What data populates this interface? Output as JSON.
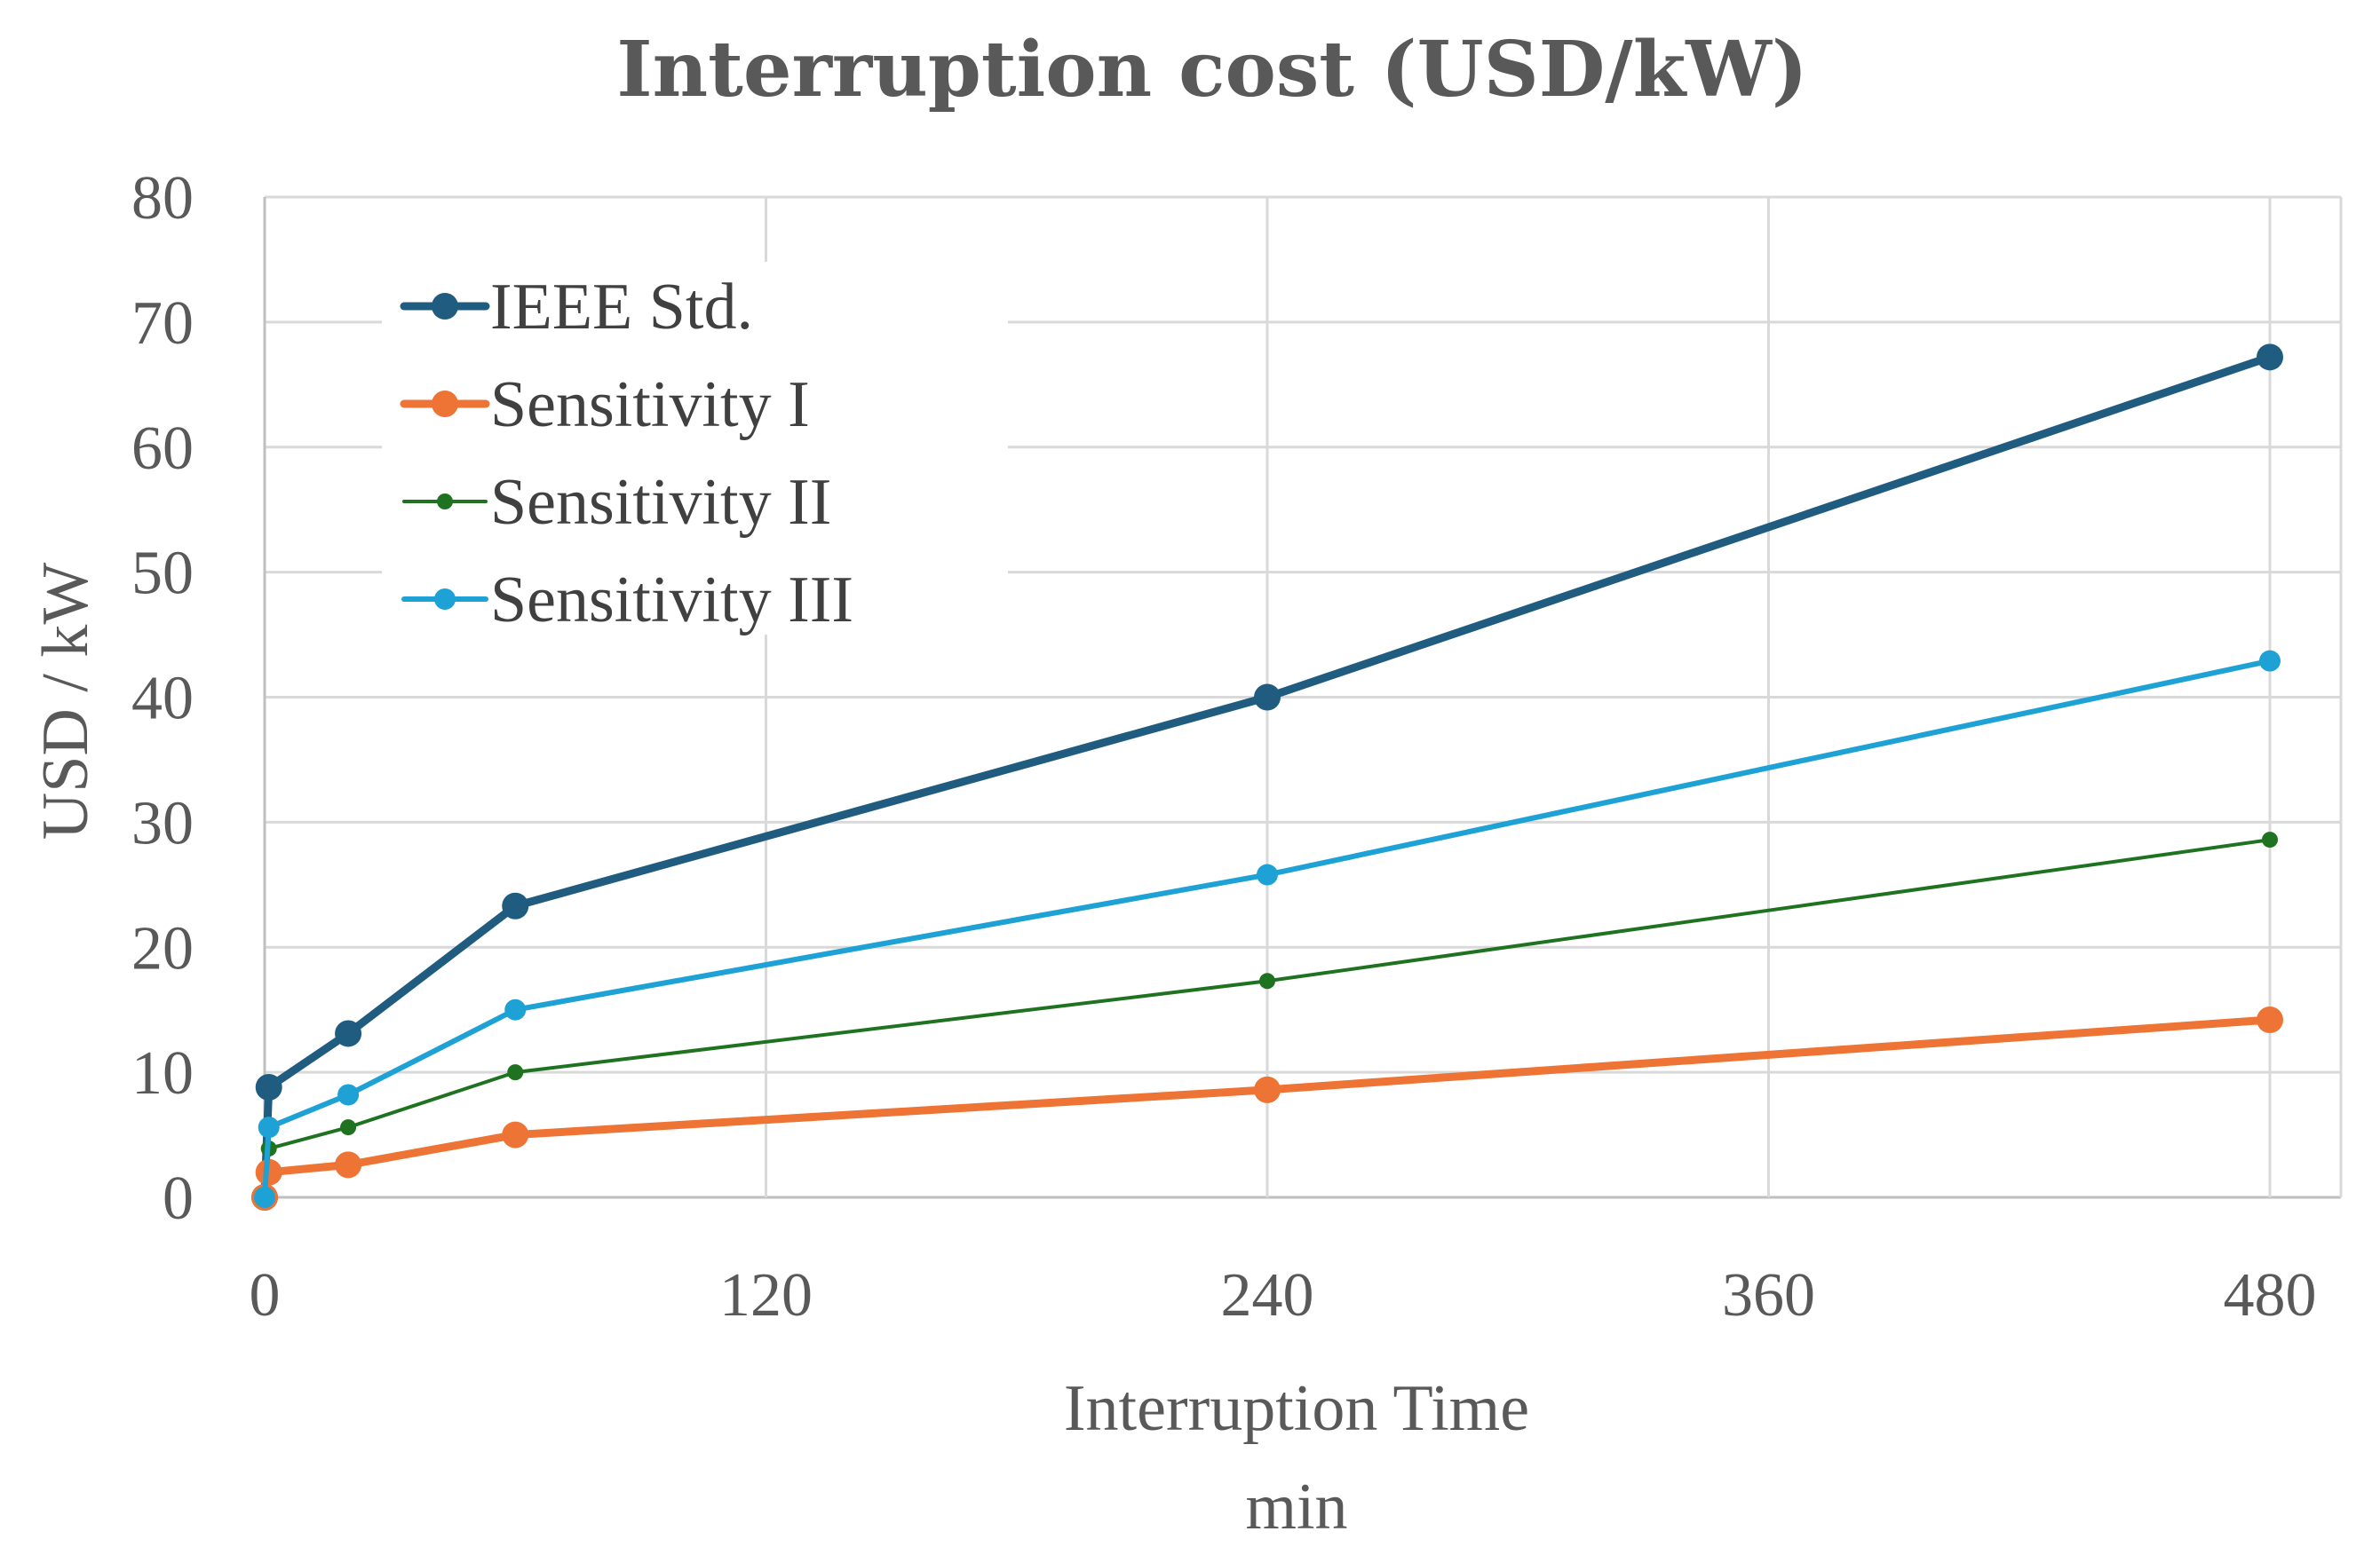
{
  "chart_data": {
    "type": "line",
    "title": "Interruption cost (USD/kW)",
    "xlabel": "Interruption Time",
    "xlabel_unit": "min",
    "ylabel": "USD / kW",
    "xlim": [
      0,
      500
    ],
    "ylim": [
      0,
      80
    ],
    "xticks": [
      0,
      120,
      240,
      360,
      480
    ],
    "yticks": [
      0,
      10,
      20,
      30,
      40,
      50,
      60,
      70,
      80
    ],
    "grid": true,
    "legend_position": "top-left",
    "series": [
      {
        "name": "IEEE Std.",
        "color": "#1f5c80",
        "width": 9,
        "marker": 15,
        "x": [
          0,
          1,
          20,
          60,
          240,
          480
        ],
        "y": [
          0,
          8.8,
          13.1,
          23.3,
          40.0,
          67.2
        ]
      },
      {
        "name": "Sensitivity I",
        "color": "#ed7434",
        "width": 9,
        "marker": 15,
        "x": [
          0,
          1,
          20,
          60,
          240,
          480
        ],
        "y": [
          0,
          2.0,
          2.6,
          5.0,
          8.6,
          14.2
        ]
      },
      {
        "name": "Sensitivity II",
        "color": "#1f7320",
        "width": 4,
        "marker": 9,
        "x": [
          0,
          1,
          20,
          60,
          240,
          480
        ],
        "y": [
          0,
          3.9,
          5.6,
          10.0,
          17.3,
          28.6
        ]
      },
      {
        "name": "Sensitivity III",
        "color": "#1ea2d6",
        "width": 6,
        "marker": 12,
        "x": [
          0,
          1,
          20,
          60,
          240,
          480
        ],
        "y": [
          0,
          5.6,
          8.2,
          15.0,
          25.8,
          42.9
        ]
      }
    ]
  }
}
